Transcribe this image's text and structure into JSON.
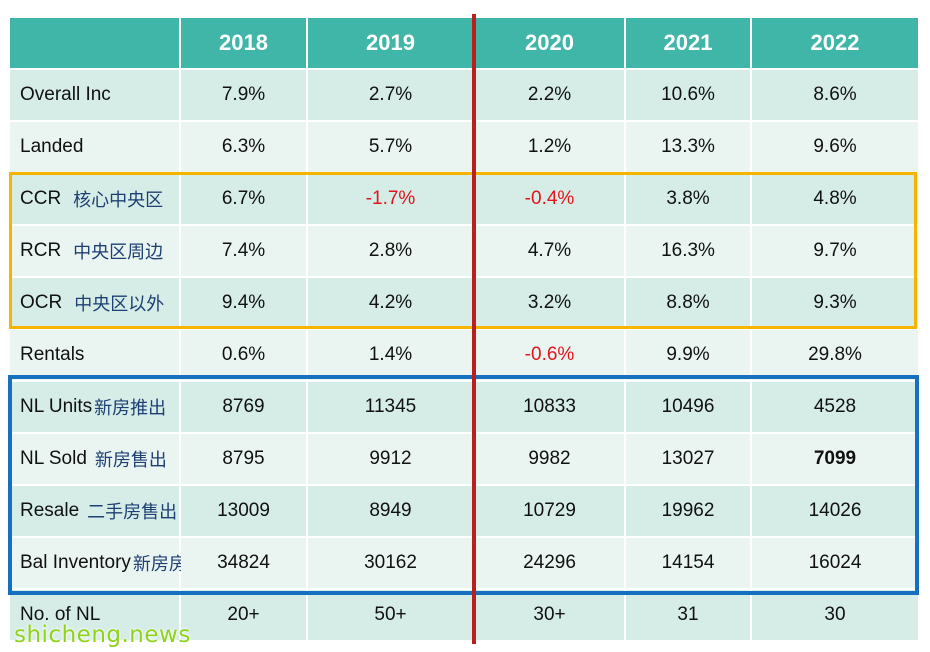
{
  "colors": {
    "header_bg": "#3fb6a7",
    "row_dark": "#d6ece6",
    "row_light": "#eaf5f2",
    "negative": "#e1151b",
    "box_private": "#f4b400",
    "box_units": "#1670c0",
    "divider": "#b81f1f",
    "watermark": "#8ed21b"
  },
  "table": {
    "header": [
      "",
      "2018",
      "2019",
      "2020",
      "2021",
      "2022"
    ],
    "rows": [
      {
        "en": "Overall Inc",
        "zh": "",
        "values": [
          "7.9%",
          "2.7%",
          "2.2%",
          "10.6%",
          "8.6%"
        ]
      },
      {
        "en": "Landed",
        "zh": "",
        "values": [
          "6.3%",
          "5.7%",
          "1.2%",
          "13.3%",
          "9.6%"
        ]
      },
      {
        "en": "CCR",
        "zh": "核心中央区",
        "values": [
          "6.7%",
          "-1.7%",
          "-0.4%",
          "3.8%",
          "4.8%"
        ]
      },
      {
        "en": "RCR",
        "zh": "中央区周边",
        "values": [
          "7.4%",
          "2.8%",
          "4.7%",
          "16.3%",
          "9.7%"
        ]
      },
      {
        "en": "OCR",
        "zh": "中央区以外",
        "values": [
          "9.4%",
          "4.2%",
          "3.2%",
          "8.8%",
          "9.3%"
        ]
      },
      {
        "en": "Rentals",
        "zh": "",
        "values": [
          "0.6%",
          "1.4%",
          "-0.6%",
          "9.9%",
          "29.8%"
        ]
      },
      {
        "en": "NL Units",
        "zh": "新房推出",
        "values": [
          "8769",
          "11345",
          "10833",
          "10496",
          "4528"
        ]
      },
      {
        "en": "NL Sold",
        "zh": "新房售出",
        "values": [
          "8795",
          "9912",
          "9982",
          "13027",
          "7099"
        ]
      },
      {
        "en": "Resale",
        "zh": "二手房售出",
        "values": [
          "13009",
          "8949",
          "10729",
          "19962",
          "14026"
        ]
      },
      {
        "en": "Bal Inventory",
        "zh": "新房房原",
        "values": [
          "34824",
          "30162",
          "24296",
          "14154",
          "16024"
        ]
      },
      {
        "en": "No. of NL",
        "zh": "",
        "values": [
          "20+",
          "50+",
          "30+",
          "31",
          "30"
        ]
      }
    ]
  },
  "watermark": "shicheng.news"
}
